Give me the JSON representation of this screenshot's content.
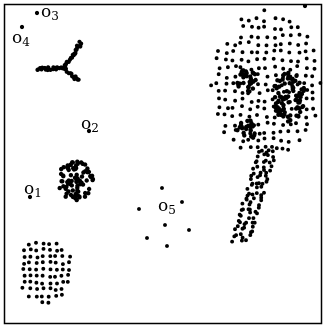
{
  "figure": {
    "background": "#ffffff",
    "frame_color": "#000000",
    "point_color": "#000000"
  },
  "labels": [
    {
      "id": "o1",
      "base": "o",
      "sub": "1"
    },
    {
      "id": "o2",
      "base": "o",
      "sub": "2"
    },
    {
      "id": "o3",
      "base": "o",
      "sub": "3"
    },
    {
      "id": "o4",
      "base": "o",
      "sub": "4"
    },
    {
      "id": "o5",
      "base": "o",
      "sub": "5"
    }
  ]
}
